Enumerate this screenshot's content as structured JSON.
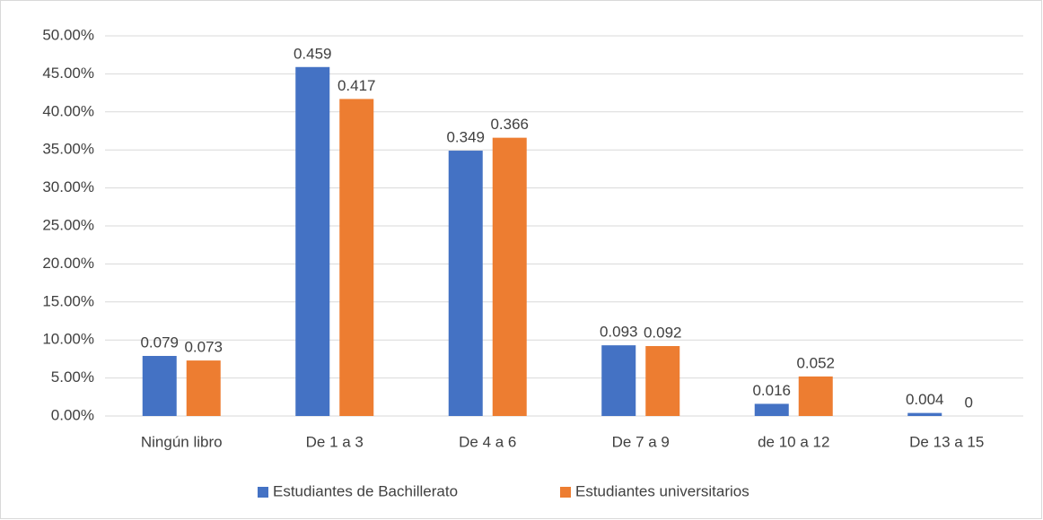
{
  "chart_data": {
    "type": "bar",
    "categories": [
      "Ningún libro",
      "De 1 a 3",
      "De 4 a 6",
      "De 7 a 9",
      "de 10 a 12",
      "De 13 a 15"
    ],
    "series": [
      {
        "name": "Estudiantes de Bachillerato",
        "color": "#4472c4",
        "values": [
          0.079,
          0.459,
          0.349,
          0.093,
          0.016,
          0.004
        ]
      },
      {
        "name": "Estudiantes universitarios",
        "color": "#ed7d31",
        "values": [
          0.073,
          0.417,
          0.366,
          0.092,
          0.052,
          0
        ]
      }
    ],
    "ylim": [
      0,
      0.5
    ],
    "yticks": [
      {
        "value": 0,
        "label": "0.00%"
      },
      {
        "value": 0.05,
        "label": "5.00%"
      },
      {
        "value": 0.1,
        "label": "10.00%"
      },
      {
        "value": 0.15,
        "label": "15.00%"
      },
      {
        "value": 0.2,
        "label": "20.00%"
      },
      {
        "value": 0.25,
        "label": "25.00%"
      },
      {
        "value": 0.3,
        "label": "30.00%"
      },
      {
        "value": 0.35,
        "label": "35.00%"
      },
      {
        "value": 0.4,
        "label": "40.00%"
      },
      {
        "value": 0.45,
        "label": "45.00%"
      },
      {
        "value": 0.5,
        "label": "50.00%"
      }
    ],
    "grid": true,
    "legend": "bottom"
  }
}
